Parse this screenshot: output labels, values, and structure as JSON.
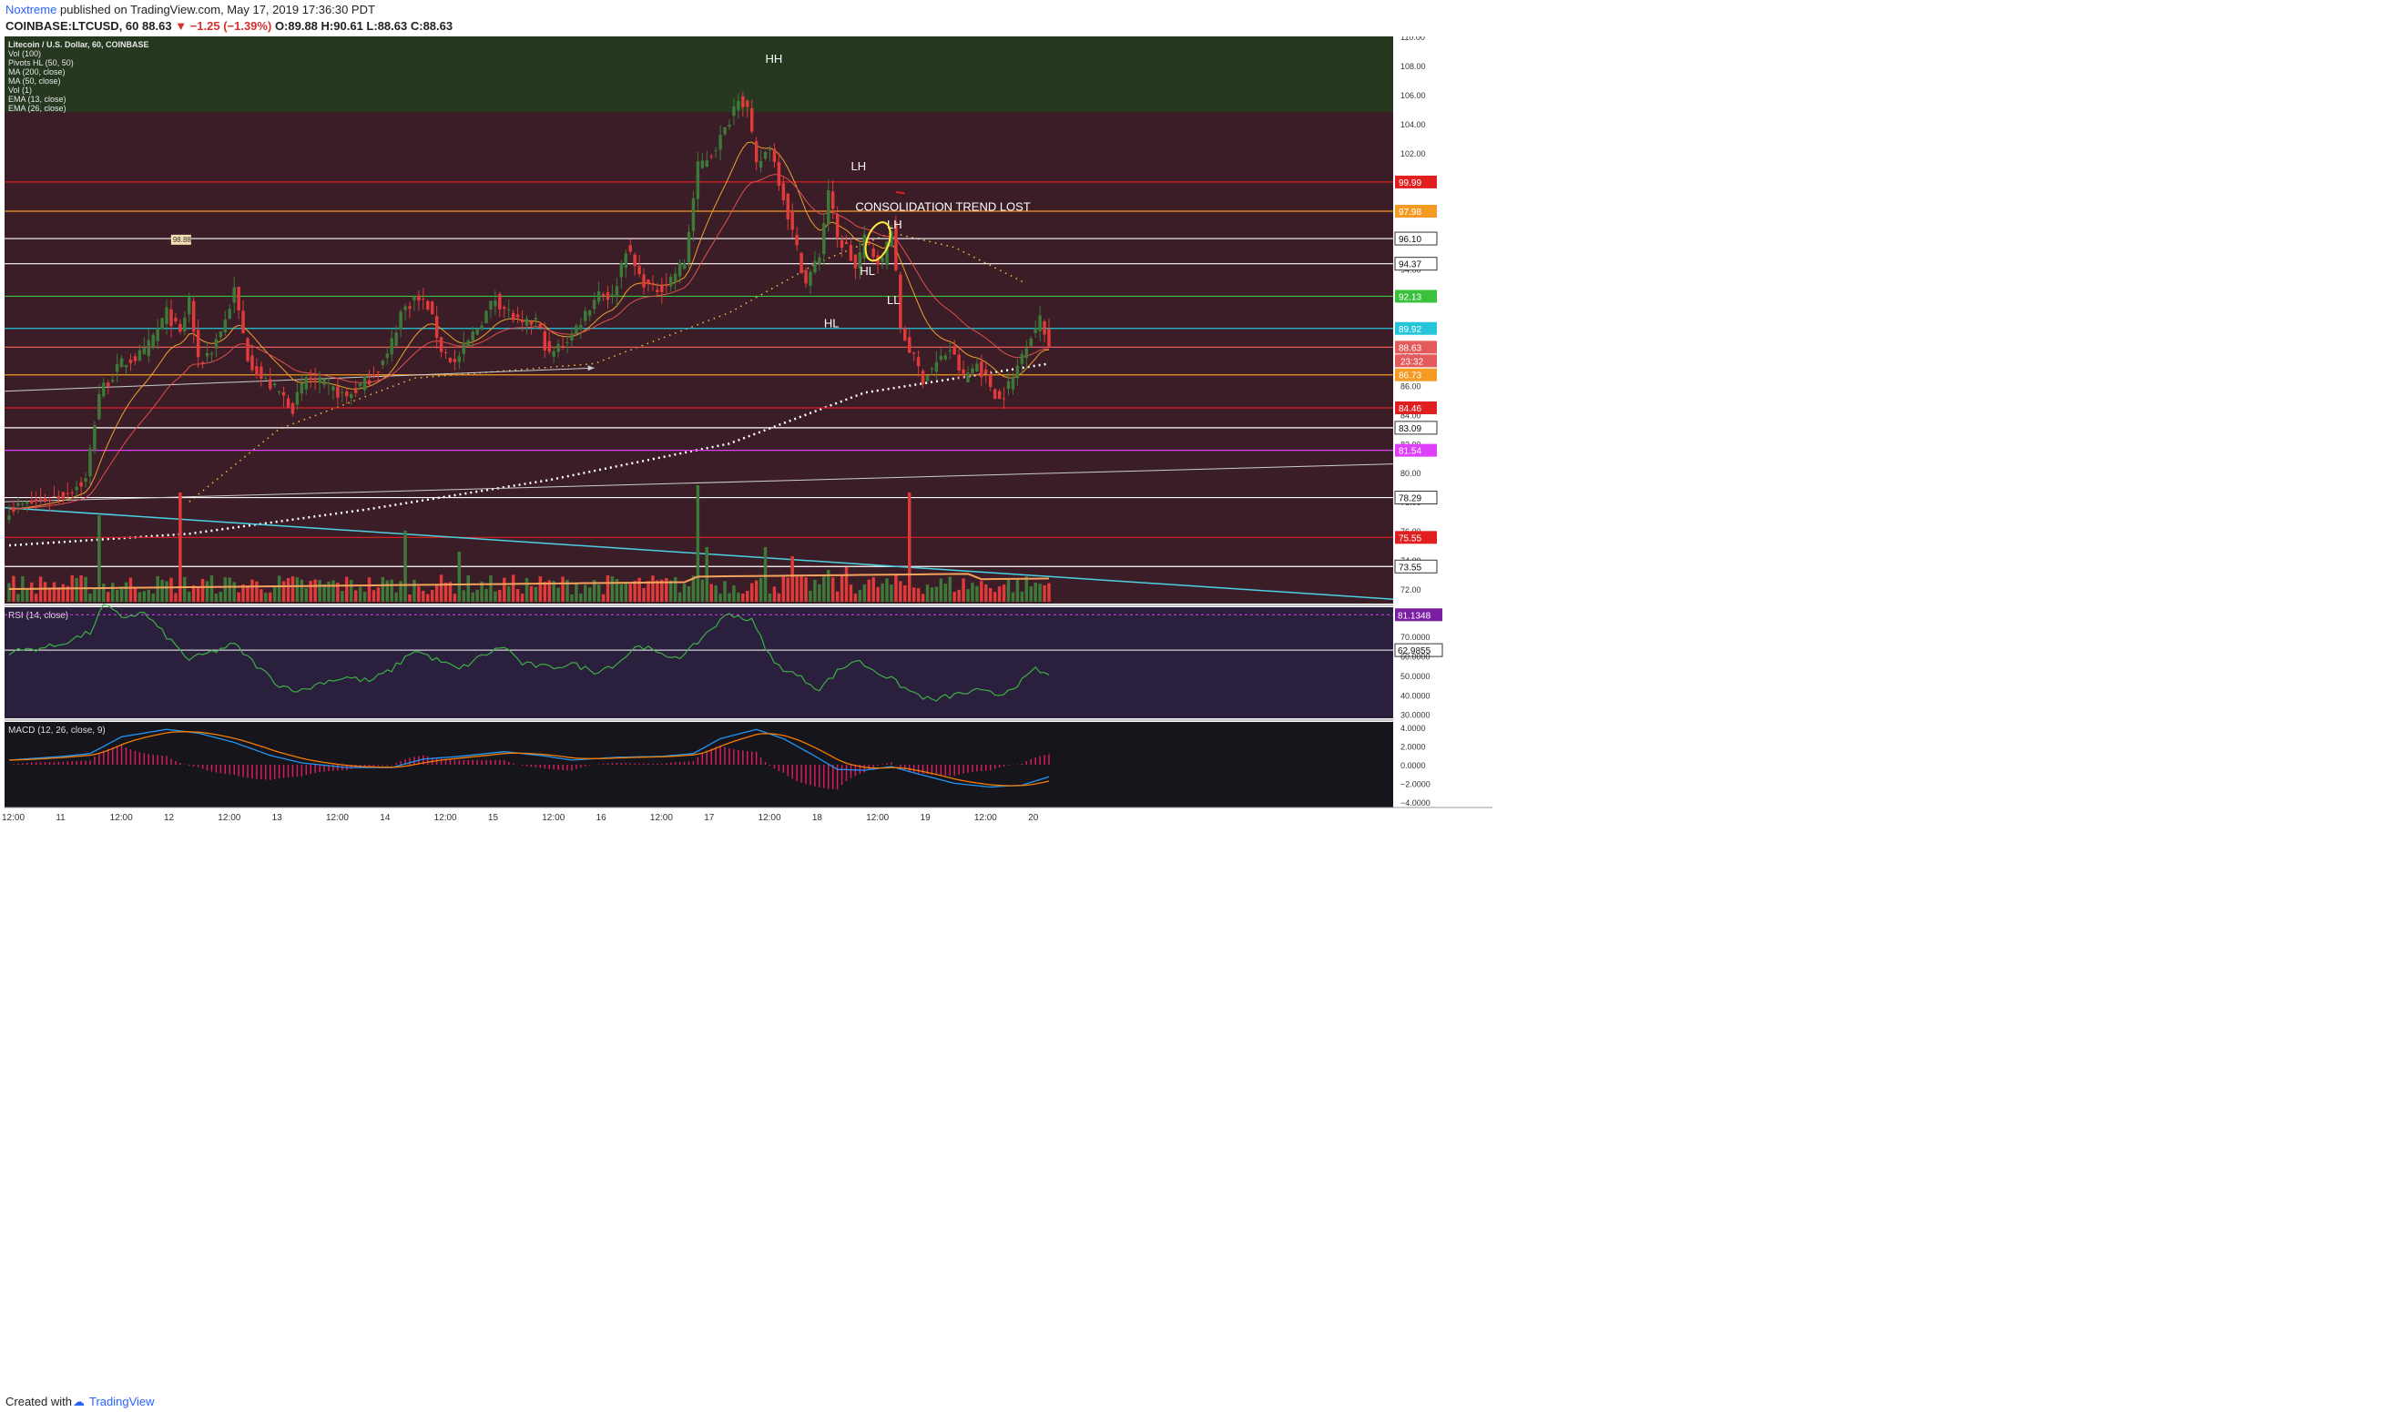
{
  "header": {
    "author": "Noxtreme",
    "published": "published on TradingView.com, May 17, 2019 17:36:30 PDT",
    "symbol": "COINBASE:LTCUSD, 60",
    "price": "88.63",
    "change": "−1.25 (−1.39%)",
    "o": "O:89.88",
    "h": "H:90.61",
    "l": "L:88.63",
    "c": "C:88.63"
  },
  "legend": [
    "Litecoin / U.S. Dollar, 60, COINBASE",
    "Vol (100)",
    "Pivots HL (50, 50)",
    "MA (200, close)",
    "MA (50, close)",
    "Vol (1)",
    "EMA (13, close)",
    "EMA (26, close)"
  ],
  "footer": {
    "created": "Created with",
    "brand": "TradingView"
  },
  "colors": {
    "bg_main": "#3a1d26",
    "bg_green": "#26381f",
    "bg_rsi": "#2a1f3d",
    "bg_macd": "#15151b",
    "up": "#3d7a3a",
    "down": "#e03a3a",
    "price_tag": "#e35b5b",
    "axis_bg": "#ffffff"
  },
  "chart_data": {
    "type": "candlestick",
    "title": "Litecoin / U.S. Dollar, 60, COINBASE",
    "x_ticks": [
      "12:00",
      "11",
      "12:00",
      "12",
      "12:00",
      "13",
      "12:00",
      "14",
      "12:00",
      "15",
      "12:00",
      "16",
      "12:00",
      "17",
      "12:00",
      "18",
      "12:00",
      "19",
      "12:00",
      "20"
    ],
    "y_ticks": [
      "110.00",
      "108.00",
      "106.00",
      "104.00",
      "102.00",
      "100.00",
      "98.00",
      "96.00",
      "94.00",
      "92.00",
      "90.00",
      "88.00",
      "86.00",
      "84.00",
      "82.00",
      "80.00",
      "78.00",
      "76.00",
      "74.00",
      "72.00"
    ],
    "ylim": [
      71,
      110
    ],
    "close_anchors": [
      [
        0,
        77.5
      ],
      [
        12,
        78.5
      ],
      [
        17,
        79.5
      ],
      [
        20,
        85.5
      ],
      [
        25,
        87.5
      ],
      [
        30,
        88.2
      ],
      [
        35,
        91
      ],
      [
        38,
        89.5
      ],
      [
        40,
        92
      ],
      [
        42,
        87.5
      ],
      [
        45,
        88.5
      ],
      [
        48,
        90.5
      ],
      [
        50,
        92.5
      ],
      [
        53,
        88
      ],
      [
        56,
        86.5
      ],
      [
        60,
        85.5
      ],
      [
        63,
        84.5
      ],
      [
        66,
        86.5
      ],
      [
        70,
        86
      ],
      [
        75,
        85.2
      ],
      [
        80,
        86.5
      ],
      [
        84,
        88
      ],
      [
        87,
        91
      ],
      [
        90,
        92
      ],
      [
        93,
        91.5
      ],
      [
        96,
        88.5
      ],
      [
        99,
        87.5
      ],
      [
        102,
        89
      ],
      [
        105,
        90.5
      ],
      [
        108,
        92
      ],
      [
        111,
        91
      ],
      [
        114,
        90
      ],
      [
        117,
        90.5
      ],
      [
        120,
        88
      ],
      [
        125,
        89.5
      ],
      [
        128,
        91
      ],
      [
        131,
        92.5
      ],
      [
        134,
        92
      ],
      [
        137,
        95.5
      ],
      [
        140,
        93.5
      ],
      [
        143,
        92.5
      ],
      [
        146,
        93
      ],
      [
        150,
        94.5
      ],
      [
        153,
        101
      ],
      [
        156,
        102
      ],
      [
        159,
        103.5
      ],
      [
        162,
        106
      ],
      [
        164,
        105
      ],
      [
        166,
        101
      ],
      [
        169,
        102.5
      ],
      [
        172,
        99
      ],
      [
        174,
        96.5
      ],
      [
        177,
        93
      ],
      [
        180,
        95
      ],
      [
        182,
        99.5
      ],
      [
        184,
        96
      ],
      [
        186,
        95.5
      ],
      [
        188,
        94
      ],
      [
        190,
        96
      ],
      [
        192,
        95
      ],
      [
        194,
        94.5
      ],
      [
        196,
        97
      ],
      [
        198,
        90
      ],
      [
        200,
        88.5
      ],
      [
        203,
        86.5
      ],
      [
        206,
        87.5
      ],
      [
        209,
        88.5
      ],
      [
        212,
        86.5
      ],
      [
        215,
        87.5
      ],
      [
        218,
        86
      ],
      [
        220,
        85
      ],
      [
        223,
        86.5
      ],
      [
        226,
        89
      ],
      [
        229,
        90.5
      ],
      [
        231,
        88.6
      ]
    ],
    "horizontal_levels": [
      {
        "value": "99.99",
        "color": "#e02020"
      },
      {
        "value": "97.98",
        "color": "#f59a23"
      },
      {
        "value": "96.10",
        "color": "#ffffff"
      },
      {
        "value": "94.37",
        "color": "#ffffff"
      },
      {
        "value": "92.13",
        "color": "#3cc13c"
      },
      {
        "value": "89.92",
        "color": "#26c6da"
      },
      {
        "value": "88.63",
        "color": "#e35b5b"
      },
      {
        "value": "86.73",
        "color": "#f59a23"
      },
      {
        "value": "84.46",
        "color": "#e02020"
      },
      {
        "value": "83.09",
        "color": "#ffffff"
      },
      {
        "value": "81.54",
        "color": "#e040fb"
      },
      {
        "value": "78.29",
        "color": "#ffffff"
      },
      {
        "value": "75.55",
        "color": "#e02020"
      },
      {
        "value": "73.55",
        "color": "#ffffff"
      }
    ],
    "countdown": "23:32",
    "annotations": [
      {
        "text": "HH",
        "x": 168,
        "y": 108.2
      },
      {
        "text": "LH",
        "x": 187,
        "y": 100.8
      },
      {
        "text": "CONSOLIDATION TREND LOST",
        "x": 188,
        "y": 98
      },
      {
        "text": "LH",
        "x": 195,
        "y": 96.8
      },
      {
        "text": "HL",
        "x": 189,
        "y": 93.6
      },
      {
        "text": "LL",
        "x": 195,
        "y": 91.6
      },
      {
        "text": "HL",
        "x": 181,
        "y": 90
      },
      {
        "text": "98.88",
        "x": 38,
        "y": 95.8
      }
    ],
    "rsi": {
      "label": "RSI (14, close)",
      "y_ticks": [
        "70.0000",
        "60.0000",
        "50.0000",
        "40.0000",
        "30.0000"
      ],
      "ylim": [
        28,
        85
      ],
      "levels": [
        "81.1348",
        "62.9855"
      ],
      "anchors": [
        [
          0,
          62
        ],
        [
          10,
          65
        ],
        [
          18,
          72
        ],
        [
          21,
          86
        ],
        [
          25,
          80
        ],
        [
          30,
          82
        ],
        [
          35,
          70
        ],
        [
          40,
          58
        ],
        [
          45,
          62
        ],
        [
          50,
          66
        ],
        [
          55,
          55
        ],
        [
          60,
          45
        ],
        [
          65,
          42
        ],
        [
          70,
          47
        ],
        [
          75,
          49
        ],
        [
          80,
          47
        ],
        [
          85,
          53
        ],
        [
          90,
          63
        ],
        [
          95,
          58
        ],
        [
          100,
          53
        ],
        [
          105,
          60
        ],
        [
          110,
          65
        ],
        [
          114,
          56
        ],
        [
          120,
          54
        ],
        [
          125,
          56
        ],
        [
          130,
          52
        ],
        [
          135,
          56
        ],
        [
          140,
          66
        ],
        [
          145,
          60
        ],
        [
          150,
          60
        ],
        [
          155,
          72
        ],
        [
          160,
          82
        ],
        [
          165,
          78
        ],
        [
          170,
          56
        ],
        [
          175,
          50
        ],
        [
          180,
          43
        ],
        [
          184,
          52
        ],
        [
          188,
          58
        ],
        [
          192,
          53
        ],
        [
          196,
          48
        ],
        [
          200,
          42
        ],
        [
          205,
          37
        ],
        [
          210,
          40
        ],
        [
          215,
          42
        ],
        [
          220,
          40
        ],
        [
          225,
          47
        ],
        [
          228,
          53
        ],
        [
          231,
          50
        ]
      ]
    },
    "macd": {
      "label": "MACD (12, 26, close, 9)",
      "y_ticks": [
        "4.0000",
        "2.0000",
        "0.0000",
        "−2.0000",
        "−4.0000"
      ],
      "ylim": [
        -4.6,
        4.6
      ],
      "anchors": [
        [
          0,
          0.5
        ],
        [
          12,
          0.9
        ],
        [
          18,
          1.2
        ],
        [
          25,
          3.0
        ],
        [
          35,
          3.8
        ],
        [
          42,
          3.4
        ],
        [
          50,
          2.4
        ],
        [
          58,
          1.0
        ],
        [
          65,
          0.2
        ],
        [
          75,
          -0.3
        ],
        [
          85,
          -0.3
        ],
        [
          92,
          0.6
        ],
        [
          100,
          0.9
        ],
        [
          110,
          1.4
        ],
        [
          118,
          1.0
        ],
        [
          125,
          0.5
        ],
        [
          135,
          0.8
        ],
        [
          145,
          0.9
        ],
        [
          152,
          1.2
        ],
        [
          158,
          2.8
        ],
        [
          166,
          3.8
        ],
        [
          172,
          2.8
        ],
        [
          178,
          1.2
        ],
        [
          184,
          -0.5
        ],
        [
          190,
          -0.6
        ],
        [
          196,
          -0.2
        ],
        [
          202,
          -1.0
        ],
        [
          210,
          -2.0
        ],
        [
          218,
          -2.4
        ],
        [
          225,
          -2.2
        ],
        [
          231,
          -1.3
        ]
      ]
    }
  }
}
